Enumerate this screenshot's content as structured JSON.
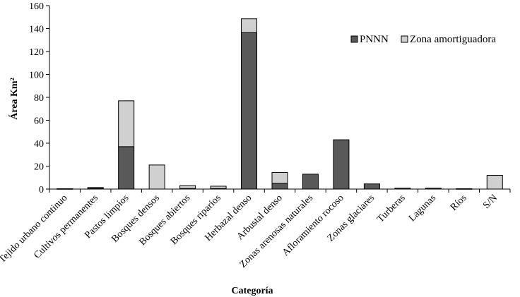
{
  "chart_data": {
    "type": "bar",
    "stacked": true,
    "xlabel": "Categoría",
    "ylabel": "Área Km²",
    "ylim": [
      0,
      160
    ],
    "yticks": [
      0,
      20,
      40,
      60,
      80,
      100,
      120,
      140,
      160
    ],
    "grid": false,
    "legend_position": "top-right",
    "categories": [
      "Tejido urbano continuo",
      "Cultivos permanentes",
      "Pastos limpios",
      "Bosques densos",
      "Bosques abiertos",
      "Bosques riparios",
      "Herbazal denso",
      "Arbustal denso",
      "Zonas arenosas naturales",
      "Afloramiento rocoso",
      "Zonas glaciares",
      "Turberas",
      "Lagunas",
      "Ríos",
      "S/N"
    ],
    "series": [
      {
        "name": "PNNN",
        "color": "#595959",
        "values": [
          0.3,
          1,
          37,
          0,
          0.5,
          0.5,
          136.5,
          5,
          13,
          43,
          4.5,
          0.8,
          0.8,
          0.3,
          0
        ]
      },
      {
        "name": "Zona amortiguadora",
        "color": "#d0d0d0",
        "values": [
          0,
          0.3,
          40,
          21,
          2.5,
          2,
          12,
          9.5,
          0,
          0,
          0,
          0,
          0,
          0,
          12
        ]
      }
    ]
  }
}
